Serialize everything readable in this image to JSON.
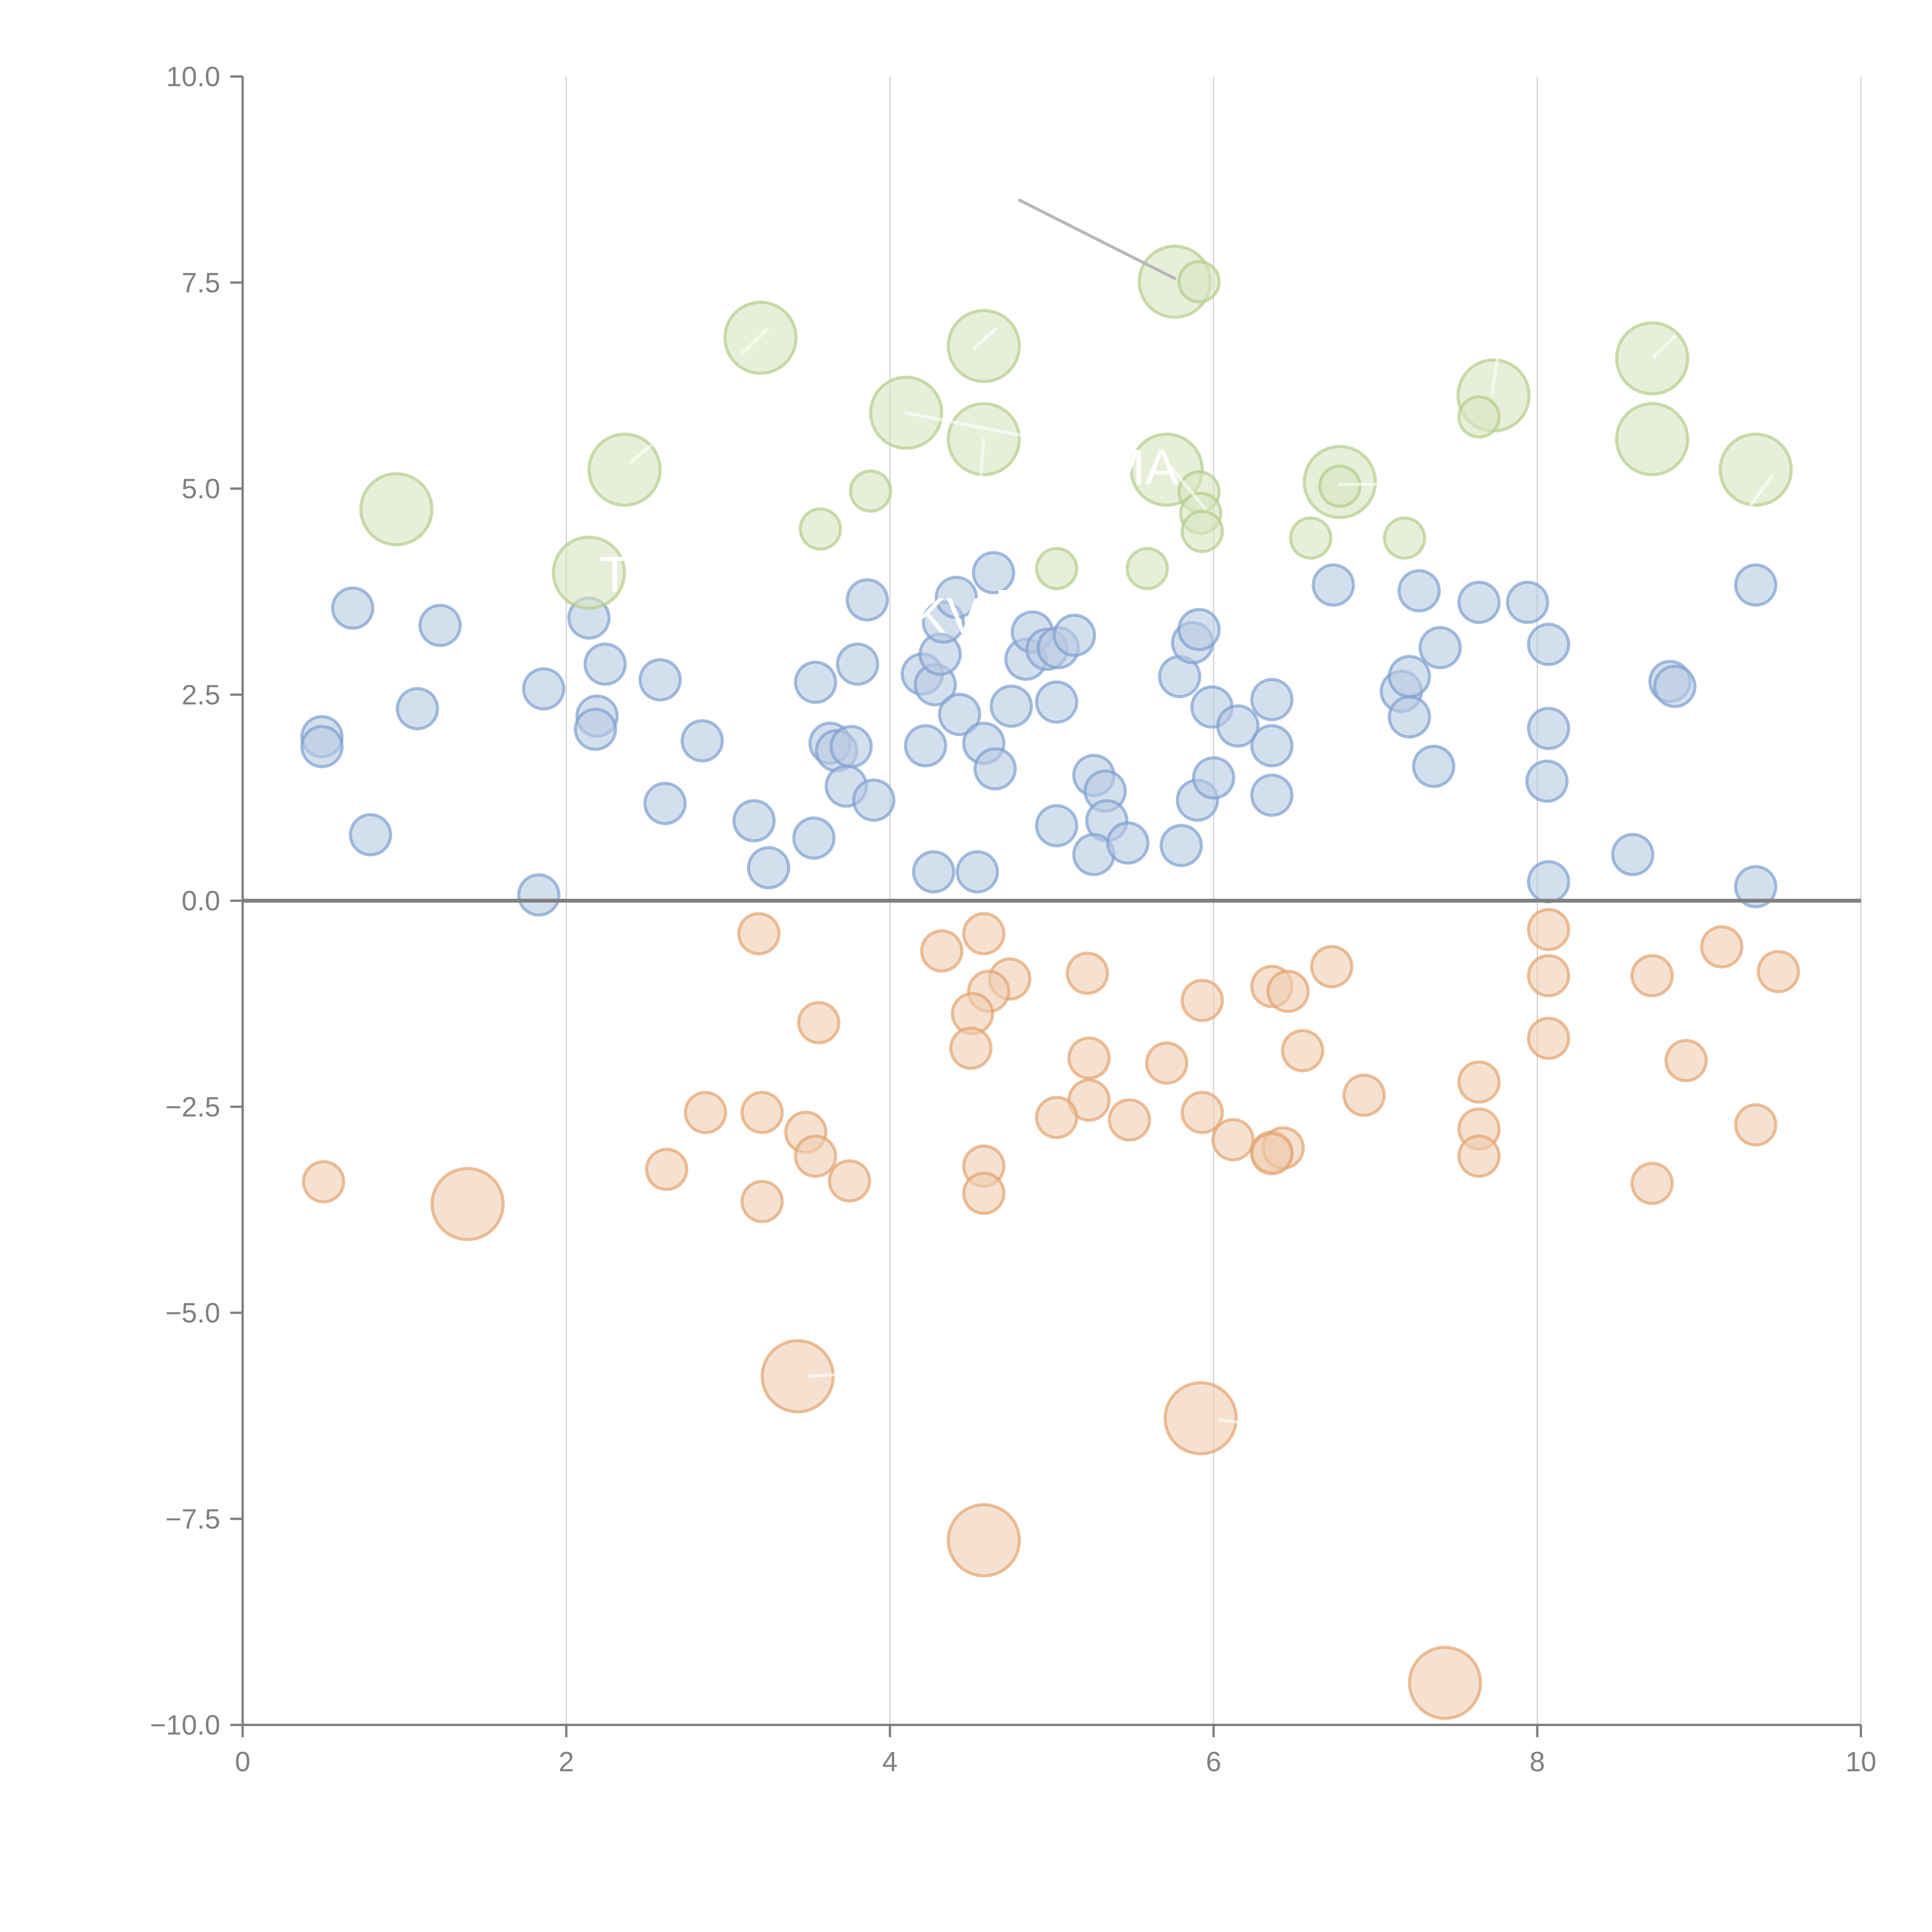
{
  "chart_data": {
    "type": "scatter",
    "title": "",
    "xlabel": "",
    "ylabel": "",
    "xlim": [
      0,
      10
    ],
    "ylim": [
      -10,
      10
    ],
    "grid": "vertical",
    "x_ticks": [
      0,
      2,
      4,
      6,
      8,
      10
    ],
    "x_tick_labels": [
      "0",
      "2",
      "4",
      "6",
      "8",
      "10"
    ],
    "y_ticks": [
      -10,
      -7.5,
      -5,
      -2.5,
      0,
      2.5,
      5,
      7.5,
      10
    ],
    "y_tick_labels": [
      "−10.0",
      "−7.5",
      "−5.0",
      "−2.5",
      "0.0",
      "2.5",
      "5.0",
      "7.5",
      "10.0"
    ],
    "reference_line_y": 0,
    "colors": {
      "blue_fill": "#b8c9e3",
      "blue_stroke": "#7f9fcf",
      "orange_fill": "#f0cdb0",
      "orange_stroke": "#e3a470",
      "green_fill": "#d7e4c0",
      "green_stroke": "#b3cd8a",
      "axis": "#808080",
      "grid": "#d0d0d0",
      "connector": "#b8b8b8"
    },
    "series": [
      {
        "name": "blue",
        "color": "blue",
        "points": [
          [
            0.68,
            3.55,
            "s"
          ],
          [
            0.49,
            1.99,
            "s"
          ],
          [
            0.49,
            1.87,
            "s"
          ],
          [
            0.79,
            0.8,
            "s"
          ],
          [
            1.08,
            2.33,
            "s"
          ],
          [
            1.22,
            3.34,
            "s"
          ],
          [
            1.86,
            2.57,
            "s"
          ],
          [
            1.83,
            0.07,
            "s"
          ],
          [
            2.14,
            3.43,
            "s"
          ],
          [
            2.19,
            2.24,
            "s"
          ],
          [
            2.18,
            2.08,
            "s"
          ],
          [
            2.24,
            2.87,
            "s"
          ],
          [
            2.58,
            2.68,
            "s"
          ],
          [
            2.61,
            1.18,
            "s"
          ],
          [
            2.84,
            1.94,
            "s"
          ],
          [
            3.16,
            0.97,
            "s"
          ],
          [
            3.25,
            0.4,
            "s"
          ],
          [
            3.54,
            2.65,
            "s"
          ],
          [
            3.53,
            0.76,
            "s"
          ],
          [
            3.63,
            1.91,
            "s"
          ],
          [
            3.67,
            1.82,
            "s"
          ],
          [
            3.76,
            1.87,
            "s"
          ],
          [
            3.73,
            1.39,
            "s"
          ],
          [
            3.8,
            2.87,
            "s"
          ],
          [
            3.86,
            3.65,
            "s"
          ],
          [
            3.9,
            1.22,
            "s"
          ],
          [
            4.2,
            2.75,
            "s"
          ],
          [
            4.22,
            1.88,
            "s"
          ],
          [
            4.28,
            2.62,
            "s"
          ],
          [
            4.31,
            2.99,
            "s"
          ],
          [
            4.27,
            0.35,
            "s"
          ],
          [
            4.33,
            3.38,
            "s"
          ],
          [
            4.41,
            3.68,
            "s"
          ],
          [
            4.43,
            2.26,
            "s"
          ],
          [
            4.54,
            0.35,
            "s"
          ],
          [
            4.58,
            1.91,
            "s"
          ],
          [
            4.65,
            1.6,
            "s"
          ],
          [
            4.64,
            3.98,
            "s"
          ],
          [
            4.75,
            2.36,
            "s"
          ],
          [
            4.84,
            2.93,
            "s"
          ],
          [
            4.88,
            3.26,
            "s"
          ],
          [
            4.97,
            3.05,
            "s"
          ],
          [
            5.04,
            3.07,
            "s"
          ],
          [
            5.03,
            2.41,
            "s"
          ],
          [
            5.03,
            0.91,
            "s"
          ],
          [
            5.14,
            3.22,
            "s"
          ],
          [
            5.26,
            1.52,
            "s"
          ],
          [
            5.33,
            1.33,
            "s"
          ],
          [
            5.34,
            0.97,
            "s"
          ],
          [
            5.26,
            0.56,
            "s"
          ],
          [
            5.47,
            0.7,
            "s"
          ],
          [
            5.79,
            2.72,
            "s"
          ],
          [
            5.8,
            0.67,
            "s"
          ],
          [
            5.87,
            3.13,
            "s"
          ],
          [
            5.91,
            3.29,
            "s"
          ],
          [
            5.9,
            1.22,
            "s"
          ],
          [
            5.99,
            2.35,
            "s"
          ],
          [
            6.0,
            1.49,
            "s"
          ],
          [
            6.15,
            2.12,
            "s"
          ],
          [
            6.36,
            2.44,
            "s"
          ],
          [
            6.36,
            1.88,
            "s"
          ],
          [
            6.36,
            1.28,
            "s"
          ],
          [
            6.74,
            3.83,
            "s"
          ],
          [
            7.16,
            2.54,
            "s"
          ],
          [
            7.21,
            2.72,
            "s"
          ],
          [
            7.21,
            2.23,
            "s"
          ],
          [
            7.27,
            3.76,
            "s"
          ],
          [
            7.36,
            1.63,
            "s"
          ],
          [
            7.4,
            3.07,
            "s"
          ],
          [
            7.64,
            3.62,
            "s"
          ],
          [
            7.94,
            3.62,
            "s"
          ],
          [
            8.07,
            3.11,
            "s"
          ],
          [
            8.07,
            2.09,
            "s"
          ],
          [
            8.06,
            1.45,
            "s"
          ],
          [
            8.07,
            0.23,
            "s"
          ],
          [
            8.59,
            0.56,
            "s"
          ],
          [
            8.82,
            2.66,
            "s"
          ],
          [
            8.85,
            2.6,
            "s"
          ],
          [
            9.35,
            3.83,
            "s"
          ],
          [
            9.35,
            0.17,
            "s"
          ]
        ]
      },
      {
        "name": "orange",
        "color": "orange",
        "points": [
          [
            0.5,
            -3.41,
            "s"
          ],
          [
            1.39,
            -3.68,
            "L"
          ],
          [
            3.19,
            -0.4,
            "s"
          ],
          [
            2.86,
            -2.57,
            "s"
          ],
          [
            3.21,
            -2.57,
            "s"
          ],
          [
            2.62,
            -3.26,
            "s"
          ],
          [
            3.21,
            -3.65,
            "s"
          ],
          [
            3.48,
            -2.81,
            "s"
          ],
          [
            3.54,
            -3.1,
            "s"
          ],
          [
            3.56,
            -1.48,
            "s"
          ],
          [
            3.75,
            -3.4,
            "s"
          ],
          [
            3.43,
            -5.77,
            "L"
          ],
          [
            4.32,
            -0.61,
            "s"
          ],
          [
            4.58,
            -0.4,
            "s"
          ],
          [
            4.74,
            -0.95,
            "s"
          ],
          [
            4.61,
            -1.1,
            "s"
          ],
          [
            4.51,
            -1.37,
            "s"
          ],
          [
            4.5,
            -1.79,
            "s"
          ],
          [
            4.58,
            -3.22,
            "s"
          ],
          [
            4.58,
            -3.55,
            "s"
          ],
          [
            4.58,
            -7.76,
            "L"
          ],
          [
            5.22,
            -0.88,
            "s"
          ],
          [
            5.23,
            -1.91,
            "s"
          ],
          [
            5.23,
            -2.42,
            "s"
          ],
          [
            5.03,
            -2.63,
            "s"
          ],
          [
            5.48,
            -2.66,
            "s"
          ],
          [
            5.71,
            -1.97,
            "s"
          ],
          [
            5.93,
            -1.21,
            "s"
          ],
          [
            5.93,
            -2.57,
            "s"
          ],
          [
            6.12,
            -2.9,
            "s"
          ],
          [
            6.36,
            -1.04,
            "s"
          ],
          [
            6.46,
            -1.1,
            "s"
          ],
          [
            6.55,
            -1.82,
            "s"
          ],
          [
            6.36,
            -3.05,
            "s"
          ],
          [
            6.43,
            -3.0,
            "s"
          ],
          [
            6.36,
            -3.07,
            "s"
          ],
          [
            6.73,
            -0.8,
            "s"
          ],
          [
            6.93,
            -2.36,
            "s"
          ],
          [
            5.92,
            -6.28,
            "L"
          ],
          [
            7.64,
            -2.2,
            "s"
          ],
          [
            7.64,
            -2.77,
            "s"
          ],
          [
            7.64,
            -3.1,
            "s"
          ],
          [
            7.43,
            -9.49,
            "L"
          ],
          [
            8.07,
            -0.35,
            "s"
          ],
          [
            8.07,
            -0.91,
            "s"
          ],
          [
            8.07,
            -1.67,
            "s"
          ],
          [
            8.71,
            -0.91,
            "s"
          ],
          [
            8.71,
            -3.43,
            "s"
          ],
          [
            8.92,
            -1.94,
            "s"
          ],
          [
            9.14,
            -0.56,
            "s"
          ],
          [
            9.49,
            -0.86,
            "s"
          ],
          [
            9.35,
            -2.72,
            "s"
          ]
        ]
      },
      {
        "name": "green",
        "color": "green",
        "points": [
          [
            0.95,
            4.75,
            "L"
          ],
          [
            2.14,
            3.98,
            "L"
          ],
          [
            2.36,
            5.23,
            "L"
          ],
          [
            3.2,
            6.83,
            "L"
          ],
          [
            3.57,
            4.51,
            "s"
          ],
          [
            3.88,
            4.97,
            "s"
          ],
          [
            4.1,
            5.92,
            "L"
          ],
          [
            4.58,
            6.73,
            "L"
          ],
          [
            4.58,
            5.6,
            "L"
          ],
          [
            5.03,
            4.03,
            "s"
          ],
          [
            5.59,
            4.03,
            "s"
          ],
          [
            5.76,
            7.51,
            "L"
          ],
          [
            5.91,
            7.51,
            "s"
          ],
          [
            5.71,
            5.23,
            "L"
          ],
          [
            5.91,
            4.96,
            "s"
          ],
          [
            5.92,
            4.7,
            "s"
          ],
          [
            5.93,
            4.48,
            "s"
          ],
          [
            6.6,
            4.4,
            "s"
          ],
          [
            6.78,
            5.08,
            "L"
          ],
          [
            6.78,
            5.03,
            "s"
          ],
          [
            7.18,
            4.4,
            "s"
          ],
          [
            7.73,
            6.13,
            "L"
          ],
          [
            7.64,
            5.87,
            "s"
          ],
          [
            8.71,
            6.58,
            "L"
          ],
          [
            8.71,
            5.6,
            "L"
          ],
          [
            9.35,
            5.23,
            "L"
          ]
        ]
      }
    ],
    "connector_lines": [
      {
        "from": [
          4.8,
          8.5
        ],
        "to": [
          5.76,
          7.55
        ],
        "color": "connector"
      }
    ],
    "white_ticks": [
      {
        "from": [
          3.24,
          6.93
        ],
        "to": [
          3.08,
          6.63
        ]
      },
      {
        "from": [
          4.65,
          6.93
        ],
        "to": [
          4.52,
          6.7
        ]
      },
      {
        "from": [
          2.52,
          5.52
        ],
        "to": [
          2.4,
          5.32
        ]
      },
      {
        "from": [
          4.1,
          5.92
        ],
        "to": [
          4.8,
          5.65
        ]
      },
      {
        "from": [
          4.58,
          5.6
        ],
        "to": [
          4.56,
          5.1
        ]
      },
      {
        "from": [
          5.72,
          5.3
        ],
        "to": [
          5.95,
          4.75
        ]
      },
      {
        "from": [
          6.78,
          5.05
        ],
        "to": [
          7.05,
          5.05
        ]
      },
      {
        "from": [
          7.77,
          6.75
        ],
        "to": [
          7.72,
          6.15
        ]
      },
      {
        "from": [
          8.85,
          6.85
        ],
        "to": [
          8.72,
          6.6
        ]
      },
      {
        "from": [
          9.45,
          5.15
        ],
        "to": [
          9.32,
          4.8
        ]
      },
      {
        "from": [
          3.5,
          -5.77
        ],
        "to": [
          3.9,
          -5.72
        ]
      },
      {
        "from": [
          6.04,
          -6.3
        ],
        "to": [
          6.25,
          -6.35
        ]
      }
    ],
    "overlay_labels": [
      {
        "text": "T",
        "x": 2.3,
        "y": 3.75
      },
      {
        "text": "KV",
        "x": 4.35,
        "y": 3.25
      },
      {
        "text": "P",
        "x": 4.75,
        "y": 3.35
      },
      {
        "text": "MA",
        "x": 5.55,
        "y": 5.05
      }
    ]
  }
}
